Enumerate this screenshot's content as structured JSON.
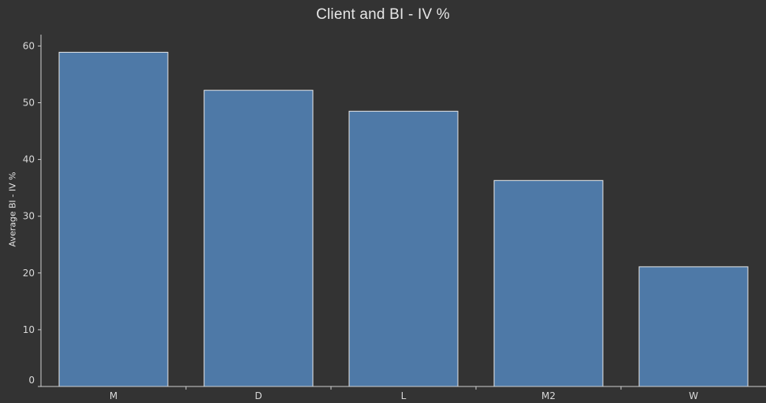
{
  "chart_data": {
    "type": "bar",
    "title": "Client and BI - IV %",
    "xlabel": "",
    "ylabel": "Average BI - IV %",
    "categories": [
      "M",
      "D",
      "L",
      "M2",
      "W"
    ],
    "values": [
      58.9,
      52.2,
      48.5,
      36.3,
      21.1
    ],
    "ylim": [
      0,
      62
    ],
    "yticks": [
      0,
      10,
      20,
      30,
      40,
      50,
      60
    ],
    "grid": false,
    "legend": "none",
    "colors": {
      "background": "#333333",
      "bar_fill": "#4e79a7",
      "bar_stroke": "#e8e8e8",
      "text": "#e6e6e6",
      "axis": "#cfcfcf"
    }
  }
}
